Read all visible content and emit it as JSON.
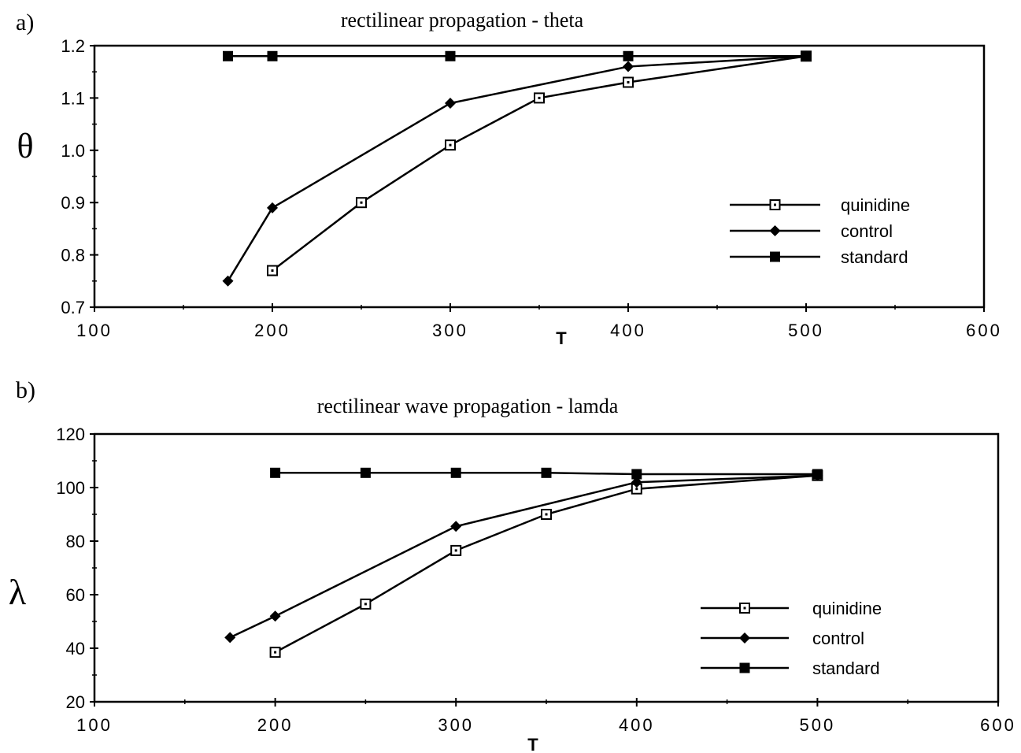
{
  "chart_data": [
    {
      "panel_label": "a)",
      "type": "line",
      "title": "rectilinear propagation - theta",
      "xlabel": "T",
      "ylabel": "θ",
      "xlim": [
        100,
        600
      ],
      "ylim": [
        0.7,
        1.2
      ],
      "xticks": [
        "100",
        "200",
        "300",
        "400",
        "500",
        "600"
      ],
      "yticks": [
        "0.7",
        "0.8",
        "0.9",
        "1.0",
        "1.1",
        "1.2"
      ],
      "legend_position": "lower-right",
      "series": [
        {
          "name": "quinidine",
          "marker": "open-square",
          "x": [
            200,
            250,
            300,
            350,
            400,
            500
          ],
          "y": [
            0.77,
            0.9,
            1.01,
            1.1,
            1.13,
            1.18
          ]
        },
        {
          "name": "control",
          "marker": "diamond",
          "x": [
            175,
            200,
            300,
            400,
            500
          ],
          "y": [
            0.75,
            0.89,
            1.09,
            1.16,
            1.18
          ]
        },
        {
          "name": "standard",
          "marker": "filled-square",
          "x": [
            175,
            200,
            300,
            400,
            500
          ],
          "y": [
            1.18,
            1.18,
            1.18,
            1.18,
            1.18
          ]
        }
      ]
    },
    {
      "panel_label": "b)",
      "type": "line",
      "title": "rectilinear wave propagation - lamda",
      "xlabel": "T",
      "ylabel": "λ",
      "xlim": [
        100,
        600
      ],
      "ylim": [
        20,
        120
      ],
      "xticks": [
        "100",
        "200",
        "300",
        "400",
        "500",
        "600"
      ],
      "yticks": [
        "20",
        "40",
        "60",
        "80",
        "100",
        "120"
      ],
      "legend_position": "lower-right",
      "series": [
        {
          "name": "quinidine",
          "marker": "open-square",
          "x": [
            200,
            250,
            300,
            350,
            400,
            500
          ],
          "y": [
            38.5,
            56.5,
            76.5,
            90,
            99.5,
            104.5
          ]
        },
        {
          "name": "control",
          "marker": "diamond",
          "x": [
            175,
            200,
            300,
            400,
            500
          ],
          "y": [
            44,
            52,
            85.5,
            102,
            104.5
          ]
        },
        {
          "name": "standard",
          "marker": "filled-square",
          "x": [
            200,
            250,
            300,
            350,
            400,
            500
          ],
          "y": [
            105.5,
            105.5,
            105.5,
            105.5,
            105,
            105
          ]
        }
      ]
    }
  ]
}
